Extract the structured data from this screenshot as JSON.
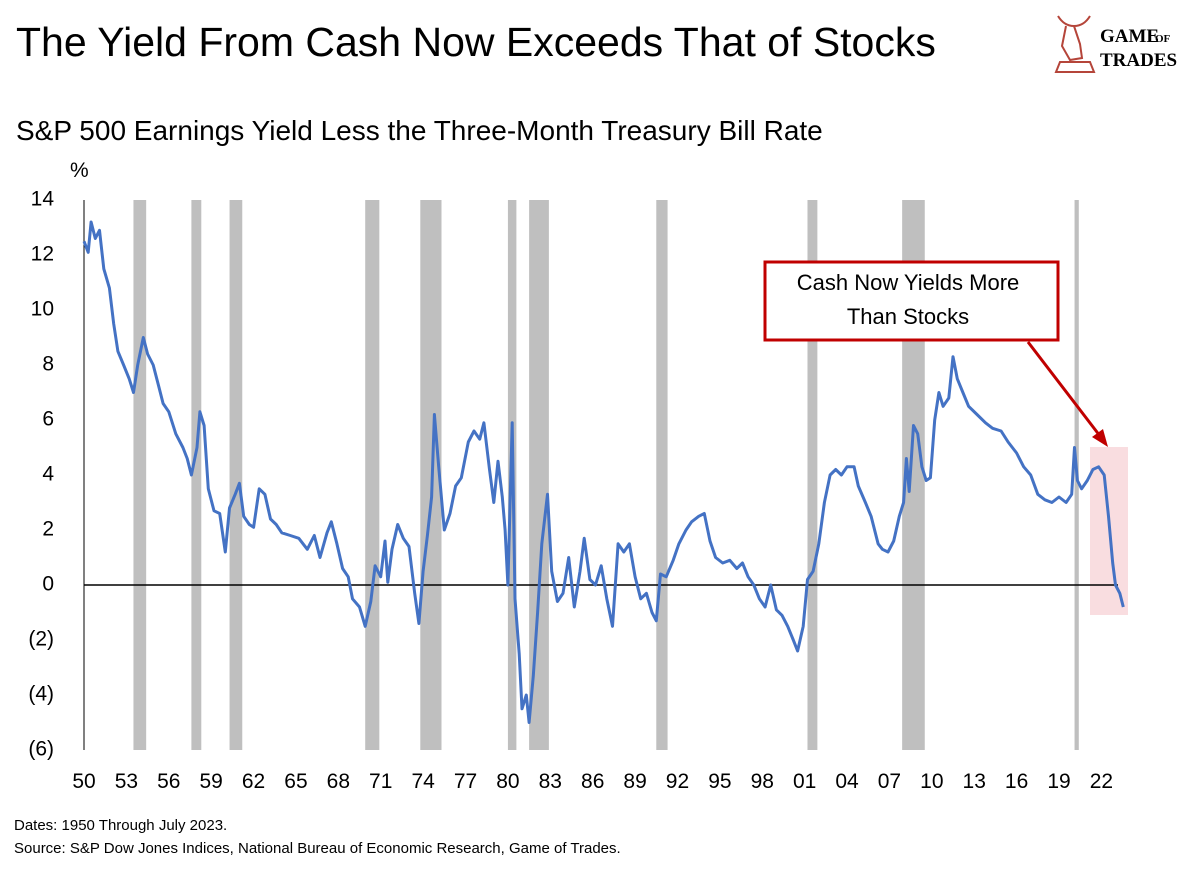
{
  "chart_data": {
    "type": "line",
    "title": "The Yield From Cash Now Exceeds That of Stocks",
    "subtitle": "S&P 500 Earnings Yield Less the Three-Month Treasury Bill Rate",
    "y_axis_label": "%",
    "logo": [
      "GAME",
      "OF",
      "TRADES"
    ],
    "annotation": [
      "Cash Now Yields More",
      "Than Stocks"
    ],
    "footnotes": [
      "Dates: 1950 Through July 2023.",
      "Source: S&P Dow Jones Indices, National Bureau of Economic Research, Game of Trades."
    ],
    "xlim": [
      1950,
      2023.6
    ],
    "ylim": [
      -6,
      14
    ],
    "yticks": [
      {
        "value": -6,
        "label": "(6)"
      },
      {
        "value": -4,
        "label": "(4)"
      },
      {
        "value": -2,
        "label": "(2)"
      },
      0,
      2,
      4,
      6,
      8,
      10,
      12,
      14
    ],
    "xticks": [
      {
        "value": 1950,
        "label": "50"
      },
      {
        "value": 1953,
        "label": "53"
      },
      {
        "value": 1956,
        "label": "56"
      },
      {
        "value": 1959,
        "label": "59"
      },
      {
        "value": 1962,
        "label": "62"
      },
      {
        "value": 1965,
        "label": "65"
      },
      {
        "value": 1968,
        "label": "68"
      },
      {
        "value": 1971,
        "label": "71"
      },
      {
        "value": 1974,
        "label": "74"
      },
      {
        "value": 1977,
        "label": "77"
      },
      {
        "value": 1980,
        "label": "80"
      },
      {
        "value": 1983,
        "label": "83"
      },
      {
        "value": 1986,
        "label": "86"
      },
      {
        "value": 1989,
        "label": "89"
      },
      {
        "value": 1992,
        "label": "92"
      },
      {
        "value": 1995,
        "label": "95"
      },
      {
        "value": 1998,
        "label": "98"
      },
      {
        "value": 2001,
        "label": "01"
      },
      {
        "value": 2004,
        "label": "04"
      },
      {
        "value": 2007,
        "label": "07"
      },
      {
        "value": 2010,
        "label": "10"
      },
      {
        "value": 2013,
        "label": "13"
      },
      {
        "value": 2016,
        "label": "16"
      },
      {
        "value": 2019,
        "label": "19"
      },
      {
        "value": 2022,
        "label": "22"
      }
    ],
    "recessions": [
      [
        1953.5,
        1954.4
      ],
      [
        1957.6,
        1958.3
      ],
      [
        1960.3,
        1961.2
      ],
      [
        1969.9,
        1970.9
      ],
      [
        1973.8,
        1975.3
      ],
      [
        1980.0,
        1980.6
      ],
      [
        1981.5,
        1982.9
      ],
      [
        1990.5,
        1991.3
      ],
      [
        2001.2,
        2001.9
      ],
      [
        2007.9,
        2009.5
      ],
      [
        2020.1,
        2020.4
      ]
    ],
    "recession_color": "#bfbfbf",
    "x": [
      1950.0,
      1950.3,
      1950.5,
      1950.8,
      1951.1,
      1951.4,
      1951.8,
      1952.1,
      1952.4,
      1952.8,
      1953.2,
      1953.5,
      1953.8,
      1954.2,
      1954.5,
      1954.9,
      1955.3,
      1955.6,
      1956.0,
      1956.5,
      1957.0,
      1957.3,
      1957.6,
      1958.0,
      1958.2,
      1958.5,
      1958.8,
      1959.2,
      1959.6,
      1960.0,
      1960.3,
      1960.7,
      1961.0,
      1961.3,
      1961.7,
      1962.0,
      1962.4,
      1962.8,
      1963.2,
      1963.6,
      1964.0,
      1964.6,
      1965.2,
      1965.8,
      1966.3,
      1966.7,
      1967.2,
      1967.5,
      1967.9,
      1968.3,
      1968.7,
      1969.0,
      1969.5,
      1969.9,
      1970.3,
      1970.6,
      1971.0,
      1971.3,
      1971.5,
      1971.8,
      1972.2,
      1972.6,
      1973.0,
      1973.4,
      1973.7,
      1974.0,
      1974.3,
      1974.6,
      1974.8,
      1975.1,
      1975.5,
      1975.9,
      1976.3,
      1976.7,
      1977.2,
      1977.6,
      1978.0,
      1978.3,
      1978.7,
      1979.0,
      1979.3,
      1979.6,
      1979.8,
      1980.0,
      1980.3,
      1980.5,
      1980.8,
      1981.0,
      1981.3,
      1981.5,
      1981.8,
      1982.1,
      1982.4,
      1982.8,
      1983.1,
      1983.5,
      1983.9,
      1984.3,
      1984.7,
      1985.1,
      1985.4,
      1985.8,
      1986.2,
      1986.6,
      1987.0,
      1987.4,
      1987.8,
      1988.2,
      1988.6,
      1989.0,
      1989.4,
      1989.8,
      1990.2,
      1990.5,
      1990.8,
      1991.2,
      1991.7,
      1992.1,
      1992.6,
      1993.0,
      1993.5,
      1993.9,
      1994.3,
      1994.7,
      1995.2,
      1995.7,
      1996.2,
      1996.6,
      1997.0,
      1997.4,
      1997.8,
      1998.2,
      1998.6,
      1999.0,
      1999.4,
      1999.8,
      2000.2,
      2000.5,
      2000.9,
      2001.2,
      2001.6,
      2002.0,
      2002.4,
      2002.8,
      2003.2,
      2003.6,
      2004.0,
      2004.5,
      2004.8,
      2005.3,
      2005.7,
      2006.2,
      2006.5,
      2006.9,
      2007.3,
      2007.7,
      2008.0,
      2008.2,
      2008.4,
      2008.7,
      2009.0,
      2009.3,
      2009.6,
      2009.9,
      2010.2,
      2010.5,
      2010.8,
      2011.2,
      2011.5,
      2011.8,
      2012.2,
      2012.6,
      2013.2,
      2013.8,
      2014.3,
      2014.9,
      2015.4,
      2016.0,
      2016.5,
      2017.0,
      2017.5,
      2018.0,
      2018.5,
      2019.0,
      2019.5,
      2019.9,
      2020.1,
      2020.3,
      2020.6,
      2021.0,
      2021.4,
      2021.8,
      2022.2,
      2022.5,
      2022.8,
      2023.0,
      2023.3,
      2023.55
    ],
    "series": [
      {
        "name": "S&P 500 Earnings Yield Less the Three-Month Treasury Bill Rate",
        "color": "#4472c4",
        "values": [
          12.5,
          12.1,
          13.2,
          12.6,
          12.9,
          11.5,
          10.8,
          9.5,
          8.5,
          8.0,
          7.5,
          7.0,
          8.0,
          9.0,
          8.4,
          8.0,
          7.2,
          6.6,
          6.3,
          5.5,
          5.0,
          4.6,
          4.0,
          5.0,
          6.3,
          5.8,
          3.5,
          2.7,
          2.6,
          1.2,
          2.8,
          3.3,
          3.7,
          2.5,
          2.2,
          2.1,
          3.5,
          3.3,
          2.4,
          2.2,
          1.9,
          1.8,
          1.7,
          1.3,
          1.8,
          1.0,
          1.9,
          2.3,
          1.5,
          0.6,
          0.3,
          -0.5,
          -0.8,
          -1.5,
          -0.6,
          0.7,
          0.3,
          1.6,
          0.1,
          1.3,
          2.2,
          1.7,
          1.4,
          -0.3,
          -1.4,
          0.5,
          1.8,
          3.2,
          6.2,
          4.3,
          2.0,
          2.6,
          3.6,
          3.9,
          5.2,
          5.6,
          5.3,
          5.9,
          4.2,
          3.0,
          4.5,
          3.2,
          2.0,
          0.0,
          5.9,
          -0.5,
          -2.5,
          -4.5,
          -4.0,
          -5.0,
          -3.3,
          -1.0,
          1.5,
          3.3,
          0.5,
          -0.6,
          -0.3,
          1.0,
          -0.8,
          0.5,
          1.7,
          0.2,
          0.0,
          0.7,
          -0.5,
          -1.5,
          1.5,
          1.2,
          1.5,
          0.3,
          -0.5,
          -0.3,
          -1.0,
          -1.3,
          0.4,
          0.3,
          0.9,
          1.5,
          2.0,
          2.3,
          2.5,
          2.6,
          1.6,
          1.0,
          0.8,
          0.9,
          0.6,
          0.8,
          0.3,
          0.0,
          -0.5,
          -0.8,
          0.0,
          -0.9,
          -1.1,
          -1.5,
          -2.0,
          -2.4,
          -1.5,
          0.2,
          0.5,
          1.5,
          3.0,
          4.0,
          4.2,
          4.0,
          4.3,
          4.3,
          3.6,
          3.0,
          2.5,
          1.5,
          1.3,
          1.2,
          1.6,
          2.5,
          3.0,
          4.6,
          3.4,
          5.8,
          5.5,
          4.3,
          3.8,
          3.9,
          6.0,
          7.0,
          6.5,
          6.8,
          8.3,
          7.5,
          7.0,
          6.5,
          6.2,
          5.9,
          5.7,
          5.6,
          5.2,
          4.8,
          4.3,
          4.0,
          3.3,
          3.1,
          3.0,
          3.2,
          3.0,
          3.3,
          5.0,
          3.8,
          3.5,
          3.8,
          4.2,
          4.3,
          4.0,
          2.5,
          0.8,
          0.0,
          -0.3,
          -0.8
        ]
      }
    ]
  }
}
